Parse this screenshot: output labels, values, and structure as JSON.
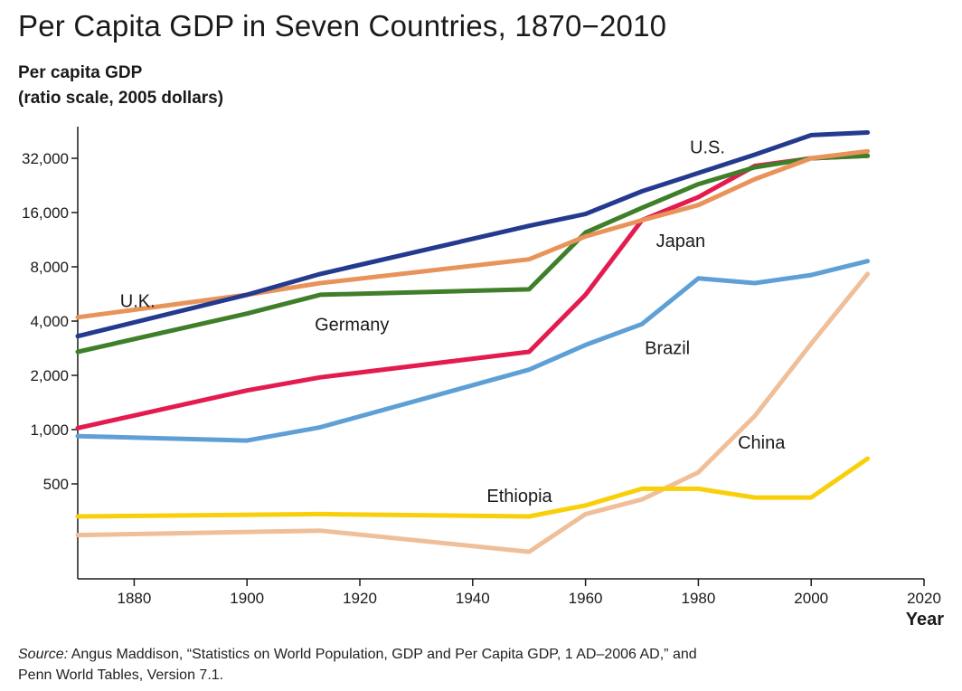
{
  "chart_data": {
    "type": "line",
    "title": "Per Capita GDP in Seven Countries, 1870−2010",
    "ylabel_line1": "Per capita GDP",
    "ylabel_line2": "(ratio scale, 2005 dollars)",
    "xlabel": "Year",
    "yscale": "log",
    "xlim": [
      1870,
      2020
    ],
    "ylim": [
      150,
      45000
    ],
    "x_ticks": [
      1880,
      1900,
      1920,
      1940,
      1960,
      1980,
      2000,
      2020
    ],
    "x_tick_labels": [
      "1880",
      "1900",
      "1920",
      "1940",
      "1960",
      "1980",
      "2000",
      "2020"
    ],
    "y_ticks": [
      500,
      1000,
      2000,
      4000,
      8000,
      16000,
      32000
    ],
    "y_tick_labels": [
      "500",
      "1,000",
      "2,000",
      "4,000",
      "8,000",
      "16,000",
      "32,000"
    ],
    "grid": false,
    "legend": "labels placed directly on lines",
    "series": [
      {
        "name": "U.S.",
        "color": "#233a8f",
        "x": [
          1870,
          1900,
          1913,
          1950,
          1960,
          1970,
          1980,
          1990,
          2000,
          2010
        ],
        "y": [
          3300,
          5600,
          7300,
          13500,
          15700,
          21000,
          26500,
          33500,
          43000,
          44500
        ]
      },
      {
        "name": "U.K.",
        "color": "#e8935a",
        "x": [
          1870,
          1900,
          1913,
          1950,
          1960,
          1970,
          1980,
          1990,
          2000,
          2010
        ],
        "y": [
          4200,
          5600,
          6500,
          8800,
          11800,
          14500,
          17600,
          24500,
          32000,
          35000
        ]
      },
      {
        "name": "Germany",
        "color": "#3f7f2a",
        "x": [
          1870,
          1900,
          1913,
          1950,
          1960,
          1970,
          1980,
          1990,
          2000,
          2010
        ],
        "y": [
          2700,
          4400,
          5600,
          6000,
          12400,
          17000,
          23000,
          28500,
          32000,
          33000
        ]
      },
      {
        "name": "Japan",
        "color": "#e31b4f",
        "x": [
          1870,
          1900,
          1913,
          1950,
          1960,
          1970,
          1980,
          1990,
          2000,
          2010
        ],
        "y": [
          1020,
          1650,
          1950,
          2700,
          5600,
          14500,
          19500,
          29000,
          32000,
          33000
        ]
      },
      {
        "name": "Brazil",
        "color": "#5ea0d6",
        "x": [
          1870,
          1900,
          1913,
          1950,
          1960,
          1970,
          1980,
          1990,
          2000,
          2010
        ],
        "y": [
          920,
          870,
          1030,
          2150,
          2950,
          3850,
          6900,
          6500,
          7200,
          8600
        ]
      },
      {
        "name": "China",
        "color": "#efbf9a",
        "x": [
          1870,
          1913,
          1950,
          1960,
          1970,
          1980,
          1990,
          2000,
          2010
        ],
        "y": [
          260,
          275,
          210,
          340,
          410,
          580,
          1190,
          3000,
          7300
        ]
      },
      {
        "name": "Ethiopia",
        "color": "#f9cf0a",
        "x": [
          1870,
          1913,
          1950,
          1960,
          1970,
          1980,
          1990,
          2000,
          2010
        ],
        "y": [
          330,
          340,
          330,
          380,
          470,
          470,
          420,
          420,
          690
        ]
      }
    ],
    "annotations": [
      {
        "text": "U.S.",
        "x": 1978.5,
        "y": 37000
      },
      {
        "text": "U.K.",
        "x": 1877.5,
        "y": 5200
      },
      {
        "text": "Germany",
        "x": 1912,
        "y": 3850
      },
      {
        "text": "Japan",
        "x": 1972.5,
        "y": 11200
      },
      {
        "text": "Brazil",
        "x": 1970.5,
        "y": 2850
      },
      {
        "text": "China",
        "x": 1987,
        "y": 850
      },
      {
        "text": "Ethiopia",
        "x": 1942.5,
        "y": 430
      }
    ]
  },
  "source": {
    "label": "Source:",
    "text": " Angus Maddison, “Statistics on World Population, GDP and Per Capita GDP, 1 AD–2006 AD,” and",
    "text2": "Penn World Tables, Version 7.1."
  }
}
